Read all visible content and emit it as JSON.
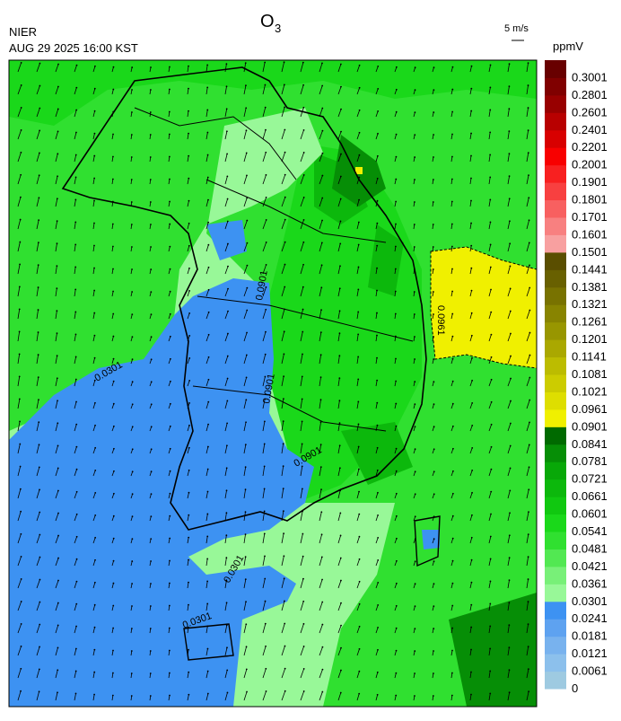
{
  "header": {
    "title": {
      "base": "O",
      "subscript": "3"
    },
    "agency": "NIER",
    "timestamp": "AUG 29 2025 16:00 KST",
    "wind_scale": "5 m/s",
    "unit": "ppmV"
  },
  "colorbar": {
    "labels": [
      0,
      0.0061,
      0.0121,
      0.0181,
      0.0241,
      0.0301,
      0.0361,
      0.0421,
      0.0481,
      0.0541,
      0.0601,
      0.0661,
      0.0721,
      0.0781,
      0.0841,
      0.0901,
      0.0961,
      0.1021,
      0.1081,
      0.1141,
      0.1201,
      0.1261,
      0.1321,
      0.1381,
      0.1441,
      0.1501,
      0.1601,
      0.1701,
      0.1801,
      0.1901,
      0.2001,
      0.2201,
      0.2401,
      0.2601,
      0.2801,
      0.3001
    ],
    "colors": [
      "#9ecae1",
      "#8cc0ec",
      "#78b2ee",
      "#5ea2f0",
      "#3d92f2",
      "#98f898",
      "#78f078",
      "#52e852",
      "#30e030",
      "#1ad81a",
      "#10c810",
      "#0cb80c",
      "#08a808",
      "#068e06",
      "#006a00",
      "#f0f000",
      "#dede00",
      "#cccc00",
      "#bcbc00",
      "#aaa800",
      "#989600",
      "#888400",
      "#787200",
      "#686000",
      "#5a4e00",
      "#f8a0a0",
      "#f88080",
      "#f86060",
      "#f84040",
      "#f82020",
      "#f80000",
      "#d80000",
      "#b80000",
      "#980000",
      "#800000",
      "#680000"
    ]
  },
  "map": {
    "contour_labels": [
      "0.0961",
      "0.0901",
      "0.0901",
      "0.0901",
      "0.0301",
      "0.0301",
      "0.0301"
    ]
  }
}
